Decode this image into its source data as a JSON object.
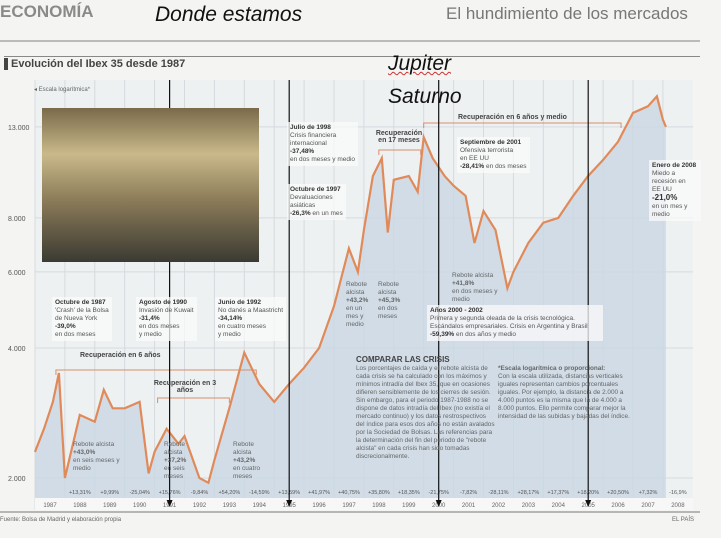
{
  "header": {
    "section": "ECONOMÍA",
    "headline": "El hundimiento de los mercados"
  },
  "overlay": {
    "donde": "Donde estamos",
    "jupiter": "Jupiter",
    "saturno": "Saturno"
  },
  "chart_title": "Evolución del Ibex 35 desde 1987",
  "scale_note": "◂ Escala logarítmica*",
  "source": "Fuente: Bolsa de Madrid y elaboración propia",
  "credit": "EL PAÍS",
  "annotations": {
    "oct87": {
      "t": "Octubre de 1987",
      "l1": "'Crash' de la Bolsa",
      "l2": "de Nueva York",
      "v": "-39,0%",
      "l3": "en dos meses"
    },
    "ago90": {
      "t": "Agosto de 1990",
      "l1": "Invasión de Kuwait",
      "v": "-31,4%",
      "l2": "en dos meses",
      "l3": "y medio"
    },
    "jun92": {
      "t": "Junio de 1992",
      "l1": "No danés a Maastricht",
      "v": "-34,14%",
      "l2": "en cuatro meses",
      "l3": "y medio"
    },
    "jul98": {
      "t": "Julio de 1998",
      "l1": "Crisis financiera",
      "l2": "internacional",
      "v": "-37,48%",
      "l3": "en dos meses y medio"
    },
    "oct97": {
      "t": "Octubre de 1997",
      "l1": "Devaluaciones",
      "l2": "asiáticas",
      "v": "-26,3%",
      "l3": "en un mes"
    },
    "sep01": {
      "t": "Septiembre de 2001",
      "l1": "Ofensiva terrorista",
      "l2": "en EE UU",
      "v": "-28,41%",
      "l3": "en dos meses"
    },
    "ene08": {
      "t": "Enero de 2008",
      "l1": "Miedo a",
      "l2": "recesión en",
      "l3": "EE UU",
      "v": "-21,0%",
      "l4": "en un mes y medio"
    },
    "a0002": {
      "t": "Años 2000 - 2002",
      "l1": "Primera y segunda oleada de la crisis tecnológica.",
      "l2": "Escándalos empresariales. Crisis en Argentina y Brasil",
      "v": "-59,39%",
      "l3": "en dos años y medio"
    }
  },
  "recoveries": {
    "r6": "Recuperación en 6 años",
    "r3": "Recuperación en 3 años",
    "r17": "Recuperación en 17 meses",
    "r65": "Recuperación en 6 años y medio"
  },
  "rebounds": {
    "b1": {
      "l": "Rebote alcista",
      "v": "+43,0%",
      "d": "en seis meses y medio"
    },
    "b2": {
      "l": "Rebote alcista",
      "v": "+37,2%",
      "d": "en seis meses"
    },
    "b3": {
      "l": "Rebote alcista",
      "v": "+43,2%",
      "d": "en cuatro meses"
    },
    "b4": {
      "l": "Rebote alcista",
      "v": "+43,2%",
      "d": "en un mes y medio"
    },
    "b5": {
      "l": "Rebote alcista",
      "v": "+45,3%",
      "d": "en dos meses"
    },
    "b6": {
      "l": "Rebote alcista",
      "v": "+41,8%",
      "d": "en dos meses y medio"
    }
  },
  "compare": {
    "title": "COMPARAR LAS CRISIS",
    "p1": "Los porcentajes de caída y el rebote alcista de cada crisis se ha calculado con los máximos y mínimos intradía del Ibex 35, que en ocasiones difieren sensiblemente de los cierres de sesión. Sin embargo, para el periodo 1987-1988 no se dispone de datos intradía del Ibex (no existía el mercado continuo) y los datos restrospectivos del índice para esos dos años no están avalados por la Sociedad de Bolsas. Las referencias para la determinación del fin del periodo de \"rebote alcista\" en cada crisis han sido tomadas discrecionalmente.",
    "p2t": "*Escala logarítmica o proporcional:",
    "p2": "Con la escala utilizada, distancias verticales iguales representan cambios porcentuales iguales. Por ejemplo, la distancia de 2.000 a 4.000 puntos es la misma que la de 4.000 a 8.000 puntos. Ello permite comparar mejor la intensidad de las subidas y bajadas del índice."
  },
  "chart_data": {
    "type": "line",
    "title": "Evolución del Ibex 35 desde 1987",
    "yscale": "log",
    "ylim": [
      1800,
      16500
    ],
    "yticks": [
      {
        "v": 2000,
        "label": "2.000"
      },
      {
        "v": 4000,
        "label": "4.000"
      },
      {
        "v": 6000,
        "label": "6.000"
      },
      {
        "v": 8000,
        "label": "8.000"
      },
      {
        "v": 13000,
        "label": "13.000"
      }
    ],
    "xlim": [
      1987,
      2009
    ],
    "years": [
      "1987",
      "1988",
      "1989",
      "1990",
      "1991",
      "1992",
      "1993",
      "1994",
      "1995",
      "1996",
      "1997",
      "1998",
      "1999",
      "2000",
      "2001",
      "2002",
      "2003",
      "2004",
      "2005",
      "2006",
      "2007",
      "2008"
    ],
    "annual_change": [
      "",
      "+13,31%",
      "+9,99%",
      "-25,04%",
      "+15,76%",
      "-9,84%",
      "+54,20%",
      "-14,59%",
      "+13,59%",
      "+41,97%",
      "+40,75%",
      "+35,80%",
      "+18,35%",
      "-21,75%",
      "-7,82%",
      "-28,11%",
      "+28,17%",
      "+17,37%",
      "+18,20%",
      "+20,50%",
      "+7,32%",
      "-16,9%"
    ],
    "series": [
      {
        "name": "Ibex 35",
        "x": [
          1987.0,
          1987.3,
          1987.6,
          1987.8,
          1988.0,
          1988.5,
          1989.0,
          1989.3,
          1989.6,
          1990.0,
          1990.5,
          1990.8,
          1991.0,
          1991.4,
          1991.8,
          1992.0,
          1992.5,
          1992.8,
          1993.0,
          1993.5,
          1994.0,
          1994.5,
          1995.0,
          1995.5,
          1996.0,
          1996.5,
          1997.0,
          1997.5,
          1997.8,
          1998.0,
          1998.3,
          1998.6,
          1998.8,
          1999.0,
          1999.5,
          1999.8,
          2000.0,
          2000.3,
          2000.7,
          2001.0,
          2001.4,
          2001.7,
          2002.0,
          2002.4,
          2002.8,
          2003.0,
          2003.5,
          2004.0,
          2004.5,
          2005.0,
          2005.5,
          2006.0,
          2006.5,
          2007.0,
          2007.5,
          2007.8,
          2008.0,
          2008.1
        ],
        "y": [
          2300,
          2600,
          3000,
          3500,
          2000,
          2800,
          2700,
          3200,
          2900,
          2900,
          3000,
          2050,
          2300,
          2600,
          2400,
          2500,
          2000,
          1950,
          2200,
          2900,
          3900,
          3300,
          3000,
          3300,
          3600,
          4000,
          5000,
          6800,
          6000,
          7500,
          10000,
          11000,
          7400,
          9800,
          10000,
          9200,
          12300,
          11000,
          10000,
          9500,
          9000,
          7000,
          8300,
          7500,
          5500,
          6000,
          7000,
          7800,
          8000,
          9000,
          10000,
          10900,
          12000,
          14000,
          14500,
          15300,
          13500,
          13000
        ]
      }
    ],
    "markers_years": [
      1991,
      1995,
      2000,
      2005
    ],
    "line_color": "#e08a5a",
    "fill_color": "#c9d7e2"
  }
}
